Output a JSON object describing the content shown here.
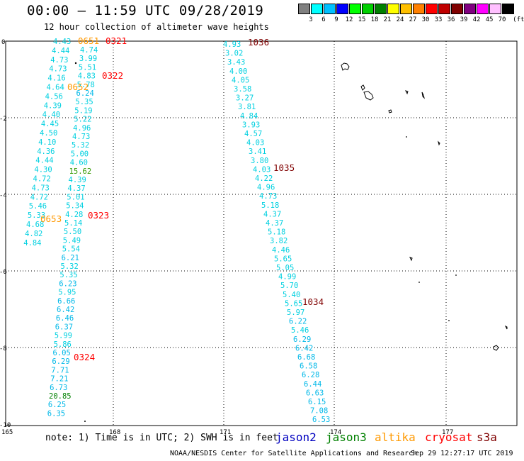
{
  "header": {
    "title": "00:00 – 11:59 UTC 09/28/2019",
    "subtitle": "12 hour collection of altimeter wave heights"
  },
  "color_scale": {
    "unit": "(ft)",
    "colors": [
      "#808080",
      "#00ffff",
      "#00c0ff",
      "#0000ff",
      "#00ff00",
      "#00d000",
      "#008000",
      "#ffff00",
      "#ffc000",
      "#ff8000",
      "#ff0000",
      "#c00000",
      "#800000",
      "#800080",
      "#ff00ff",
      "#ffc0ff",
      "#000000"
    ],
    "labels": [
      "3",
      "6",
      "9",
      "12",
      "15",
      "18",
      "21",
      "24",
      "27",
      "30",
      "33",
      "36",
      "39",
      "42",
      "45",
      "70"
    ]
  },
  "axes": {
    "x_labels": [
      "165",
      "168",
      "171",
      "174",
      "177"
    ],
    "y_labels": [
      "0",
      "-2",
      "-4",
      "-6",
      "-8",
      "-10"
    ]
  },
  "tracks": {
    "track_a": [
      "4.43",
      "4.44",
      "4.73",
      "4.73",
      "4.16",
      "4.64",
      "4.56",
      "4.39",
      "4.40",
      "4.45",
      "4.50",
      "4.10",
      "4.36",
      "4.44",
      "4.30",
      "4.72",
      "4.73",
      "4.72",
      "5.46",
      "5.33",
      "4.68",
      "4.82",
      "4.84"
    ],
    "track_b": [
      "4.74",
      "3.99",
      "5.51",
      "4.83",
      "5.78",
      "6.24",
      "5.35",
      "5.19",
      "5.22",
      "4.96",
      "4.73",
      "5.32",
      "5.00",
      "4.60",
      "15.62",
      "4.39",
      "4.37",
      "5.01",
      "5.34",
      "4.28",
      "5.14",
      "5.50",
      "5.49",
      "5.54",
      "6.21",
      "5.32",
      "5.35",
      "6.23",
      "5.95",
      "6.66",
      "6.42",
      "6.46",
      "6.37",
      "5.99",
      "5.86",
      "6.05",
      "6.29",
      "7.71",
      "7.21",
      "6.73",
      "20.85",
      "6.25",
      "6.35"
    ],
    "track_c": [
      "4.93",
      "3.02",
      "3.43",
      "4.00",
      "4.05",
      "3.58",
      "3.27",
      "3.81",
      "4.84",
      "3.93",
      "4.57",
      "4.03",
      "3.41",
      "3.80",
      "4.03",
      "4.22",
      "4.96",
      "4.73",
      "5.18",
      "4.37",
      "4.37",
      "5.18",
      "3.82",
      "4.46",
      "5.65",
      "5.05",
      "4.99",
      "5.70",
      "5.40",
      "5.65",
      "5.97",
      "6.22",
      "5.46",
      "6.29",
      "6.42",
      "6.68",
      "6.58",
      "6.28",
      "6.44",
      "6.63",
      "6.15",
      "7.08",
      "6.53"
    ]
  },
  "time_labels": [
    {
      "text": "0651",
      "sat": "altika"
    },
    {
      "text": "0321",
      "sat": "cryosat"
    },
    {
      "text": "0322",
      "sat": "cryosat"
    },
    {
      "text": "0652",
      "sat": "altika"
    },
    {
      "text": "0323",
      "sat": "cryosat"
    },
    {
      "text": "0653",
      "sat": "altika"
    },
    {
      "text": "0324",
      "sat": "cryosat"
    },
    {
      "text": "1036",
      "sat": "s3a"
    },
    {
      "text": "1035",
      "sat": "s3a"
    },
    {
      "text": "1034",
      "sat": "s3a"
    }
  ],
  "legend": {
    "note": "note: 1) Time is in UTC; 2) SWH is in feet",
    "satellites": [
      {
        "name": "jason2",
        "color": "#0000c0"
      },
      {
        "name": "jason3",
        "color": "#008000"
      },
      {
        "name": "altika",
        "color": "#ff9900"
      },
      {
        "name": "cryosat",
        "color": "#ff0000"
      },
      {
        "name": "s3a",
        "color": "#800000"
      }
    ]
  },
  "footer": {
    "credit": "NOAA/NESDIS Center for Satellite Applications and Research",
    "timestamp": "Sep 29 12:27:17 UTC 2019"
  }
}
